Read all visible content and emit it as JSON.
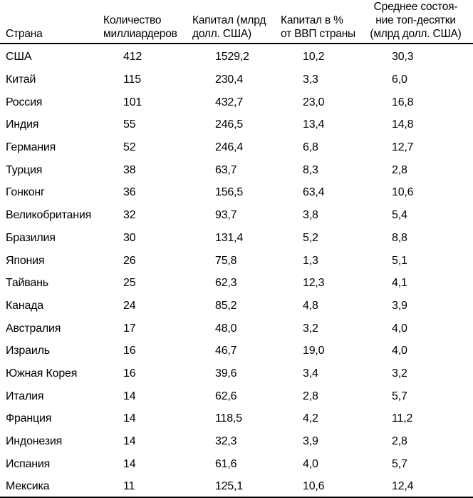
{
  "chart_data": {
    "type": "table",
    "columns": [
      {
        "label": "Страна",
        "lines": [
          "Страна"
        ]
      },
      {
        "label": "Количество миллиардеров",
        "lines": [
          "Количество",
          "миллиардеров"
        ]
      },
      {
        "label": "Капитал (млрд долл. США)",
        "lines": [
          "Капитал (млрд",
          "долл. США)"
        ]
      },
      {
        "label": "Капитал в % от ВВП страны",
        "lines": [
          "Капитал в %",
          "от ВВП страны"
        ]
      },
      {
        "label": "Среднее состояние топ-десятки (млрд долл. США)",
        "lines": [
          "Среднее состоя-",
          "ние топ-десятки",
          "(млрд долл. США)"
        ]
      }
    ],
    "rows": [
      [
        "США",
        "412",
        "1529,2",
        "10,2",
        "30,3"
      ],
      [
        "Китай",
        "115",
        "230,4",
        "3,3",
        "6,0"
      ],
      [
        "Россия",
        "101",
        "432,7",
        "23,0",
        "16,8"
      ],
      [
        "Индия",
        "55",
        "246,5",
        "13,4",
        "14,8"
      ],
      [
        "Германия",
        "52",
        "246,4",
        "6,8",
        "12,7"
      ],
      [
        "Турция",
        "38",
        "63,7",
        "8,3",
        "2,8"
      ],
      [
        "Гонконг",
        "36",
        "156,5",
        "63,4",
        "10,6"
      ],
      [
        "Великобритания",
        "32",
        "93,7",
        "3,8",
        "5,4"
      ],
      [
        "Бразилия",
        "30",
        "131,4",
        "5,2",
        "8,8"
      ],
      [
        "Япония",
        "26",
        "75,8",
        "1,3",
        "5,1"
      ],
      [
        "Тайвань",
        "25",
        "62,3",
        "12,3",
        "4,1"
      ],
      [
        "Канада",
        "24",
        "85,2",
        "4,8",
        "3,9"
      ],
      [
        "Австралия",
        "17",
        "48,0",
        "3,2",
        "4,0"
      ],
      [
        "Израиль",
        "16",
        "46,7",
        "19,0",
        "4,0"
      ],
      [
        "Южная Корея",
        "16",
        "39,6",
        "3,4",
        "3,2"
      ],
      [
        "Италия",
        "14",
        "62,6",
        "2,8",
        "5,7"
      ],
      [
        "Франция",
        "14",
        "118,5",
        "4,2",
        "11,2"
      ],
      [
        "Индонезия",
        "14",
        "32,3",
        "3,9",
        "2,8"
      ],
      [
        "Испания",
        "14",
        "61,6",
        "4,0",
        "5,7"
      ],
      [
        "Мексика",
        "11",
        "125,1",
        "10,6",
        "12,4"
      ]
    ]
  },
  "colors": {
    "text": "#000000",
    "background": "#ffffff",
    "rule": "#000000"
  }
}
